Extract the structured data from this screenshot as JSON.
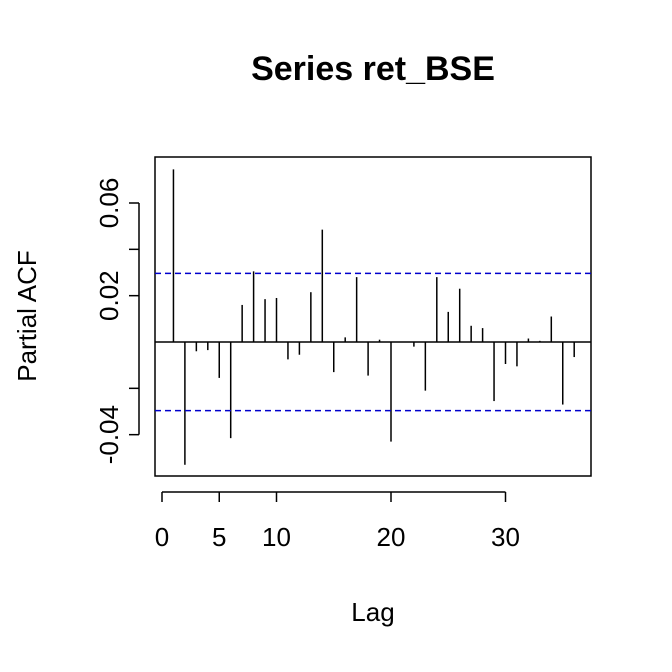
{
  "chart_data": {
    "type": "bar",
    "title": "Series  ret_BSE",
    "xlabel": "Lag",
    "ylabel": "Partial ACF",
    "xlim": [
      0,
      37
    ],
    "ylim": [
      -0.057,
      0.08
    ],
    "x_ticks": [
      {
        "value": 0,
        "label": "0"
      },
      {
        "value": 5,
        "label": "5"
      },
      {
        "value": 10,
        "label": "10"
      },
      {
        "value": 20,
        "label": "20"
      },
      {
        "value": 30,
        "label": "30"
      }
    ],
    "y_ticks": [
      {
        "value": -0.04,
        "label": "-0.04"
      },
      {
        "value": -0.02,
        "label": ""
      },
      {
        "value": 0.02,
        "label": "0.02"
      },
      {
        "value": 0.04,
        "label": ""
      },
      {
        "value": 0.06,
        "label": "0.06"
      }
    ],
    "conf_limit": 0.0296,
    "conf_color": "#0000cc",
    "series": [
      {
        "lags": [
          1,
          2,
          3,
          4,
          5,
          6,
          7,
          8,
          9,
          10,
          11,
          12,
          13,
          14,
          15,
          16,
          17,
          18,
          19,
          20,
          21,
          22,
          23,
          24,
          25,
          26,
          27,
          28,
          29,
          30,
          31,
          32,
          33,
          34,
          35,
          36
        ],
        "values": [
          0.0745,
          -0.053,
          -0.004,
          -0.0035,
          -0.0155,
          -0.0415,
          0.016,
          0.0305,
          0.0185,
          0.019,
          -0.0075,
          -0.0055,
          0.0215,
          0.0485,
          -0.013,
          0.002,
          0.028,
          -0.0145,
          0.001,
          -0.043,
          0.0,
          -0.002,
          -0.021,
          0.028,
          0.013,
          0.023,
          0.007,
          0.006,
          -0.0255,
          -0.0095,
          -0.0105,
          0.0015,
          0.0005,
          0.011,
          -0.027,
          -0.0065
        ]
      }
    ]
  }
}
